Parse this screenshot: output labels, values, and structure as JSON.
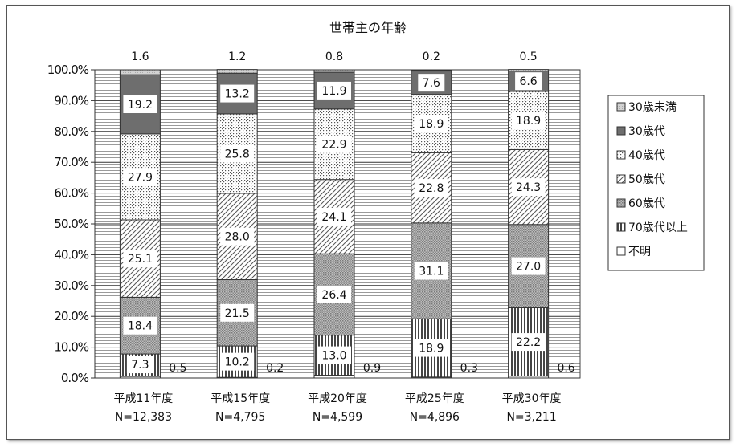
{
  "chart_data": {
    "type": "bar",
    "stacked": true,
    "title": "世帯主の年齢",
    "xlabel": "",
    "ylabel": "",
    "ylim": [
      0,
      100
    ],
    "y_ticks": [
      "0.0%",
      "10.0%",
      "20.0%",
      "30.0%",
      "40.0%",
      "50.0%",
      "60.0%",
      "70.0%",
      "80.0%",
      "90.0%",
      "100.0%"
    ],
    "grid": true,
    "legend_position": "right",
    "categories": [
      "平成11年度",
      "平成15年度",
      "平成20年度",
      "平成25年度",
      "平成30年度"
    ],
    "category_n": [
      "N=12,383",
      "N=4,795",
      "N=4,599",
      "N=4,896",
      "N=3,211"
    ],
    "stack_order": [
      "不明",
      "70歳代以上",
      "60歳代",
      "50歳代",
      "40歳代",
      "30歳代",
      "30歳未満"
    ],
    "series": [
      {
        "name": "30歳未満",
        "values": [
          1.6,
          1.2,
          0.8,
          0.2,
          0.5
        ],
        "labels": [
          "1.6",
          "1.2",
          "0.8",
          "0.2",
          "0.5"
        ],
        "color": "#c8c8c8"
      },
      {
        "name": "30歳代",
        "values": [
          19.2,
          13.2,
          11.9,
          7.6,
          6.6
        ],
        "labels": [
          "19.2",
          "13.2",
          "11.9",
          "7.6",
          "6.6"
        ],
        "color": "#6e6e6e"
      },
      {
        "name": "40歳代",
        "values": [
          27.9,
          25.8,
          22.9,
          18.9,
          18.9
        ],
        "labels": [
          "27.9",
          "25.8",
          "22.9",
          "18.9",
          "18.9"
        ],
        "color": "#ffffff"
      },
      {
        "name": "50歳代",
        "values": [
          25.1,
          28.0,
          24.1,
          22.8,
          24.3
        ],
        "labels": [
          "25.1",
          "28.0",
          "24.1",
          "22.8",
          "24.3"
        ],
        "color": "#ffffff"
      },
      {
        "name": "60歳代",
        "values": [
          18.4,
          21.5,
          26.4,
          31.1,
          27.0
        ],
        "labels": [
          "18.4",
          "21.5",
          "26.4",
          "31.1",
          "27.0"
        ],
        "color": "#a0a0a0"
      },
      {
        "name": "70歳代以上",
        "values": [
          7.3,
          10.2,
          13.0,
          18.9,
          22.2
        ],
        "labels": [
          "7.3",
          "10.2",
          "13.0",
          "18.9",
          "22.2"
        ],
        "color": "#ffffff"
      },
      {
        "name": "不明",
        "values": [
          0.5,
          0.2,
          0.9,
          0.3,
          0.6
        ],
        "labels": [
          "0.5",
          "0.2",
          "0.9",
          "0.3",
          "0.6"
        ],
        "color": "#ffffff"
      }
    ]
  }
}
